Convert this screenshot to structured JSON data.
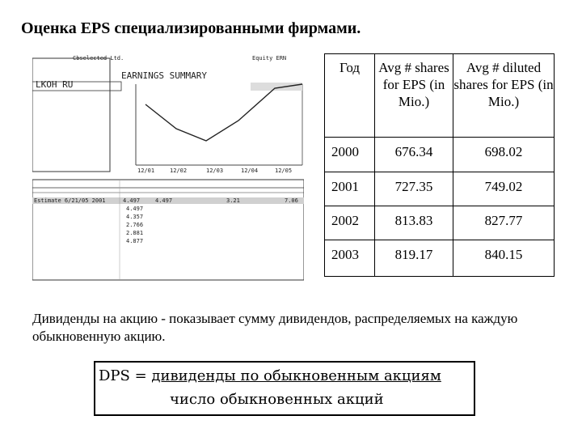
{
  "title": "Оценка EPS специализированными фирмами.",
  "screenshot": {
    "header_left": "Cbselected Ltd.",
    "header_right": "Equity ERN",
    "heading": "EARNINGS SUMMARY",
    "ticker": "LKOH RU",
    "x_ticks": [
      "12/01",
      "12/02",
      "12/03",
      "12/04",
      "12/05"
    ],
    "row_label": "Estimate 6/21/05 2001",
    "col_values": [
      "4.497",
      "4.497",
      "3.21",
      "7.06"
    ],
    "sub_values": [
      "4.497",
      "4.357",
      "2.766",
      "2.881",
      "4.877"
    ]
  },
  "table": {
    "headers": [
      "Год",
      "Avg # shares for EPS (in Mio.)",
      "Avg # diluted shares for EPS (in Mio.)"
    ],
    "rows": [
      {
        "year": "2000",
        "avg": "676.34",
        "diluted": "698.02"
      },
      {
        "year": "2001",
        "avg": "727.35",
        "diluted": "749.02"
      },
      {
        "year": "2002",
        "avg": "813.83",
        "diluted": "827.77"
      },
      {
        "year": "2003",
        "avg": "819.17",
        "diluted": "840.15"
      }
    ]
  },
  "description": "Дивиденды на акцию - показывает сумму дивидендов, распределяемых на каждую обыкновенную акцию.",
  "formula": {
    "lhs": "DPS = ",
    "numerator": "дивиденды по обыкновенным акциям",
    "denominator": "число обыкновенных акций"
  }
}
